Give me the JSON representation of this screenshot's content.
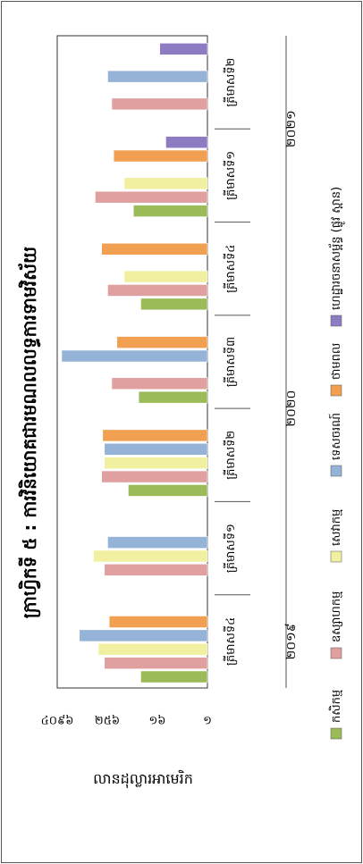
{
  "chart_data": {
    "type": "bar",
    "orientation": "rotated-90",
    "title": "ក្រាហ្វិកទី ៥ : ការវិនិយោគជារមណលលទ្ធការទាមវិស័យ",
    "ylabel": "លានដុល្លារអាមេរិក",
    "y_ticks": [
      "១",
      "១៦",
      "២៥៦",
      "៤០៩៦"
    ],
    "y_scale": "log",
    "ylim": [
      1,
      4096
    ],
    "categories": [
      "ត្រីមាសទី៤",
      "ត្រីមាសទី១",
      "ត្រីមាសទី២",
      "ត្រីមាសទី៣",
      "ត្រីមាសទី៤",
      "ត្រីមាសទី១",
      "ត្រីមាសទី២"
    ],
    "year_groups": [
      {
        "label": "២០១៩",
        "span": [
          0,
          0
        ]
      },
      {
        "label": "២០២០",
        "span": [
          1,
          4
        ]
      },
      {
        "label": "២០២១",
        "span": [
          5,
          6
        ]
      }
    ],
    "series": [
      {
        "name": "កសិកម្ម",
        "color": "#9bbb59",
        "values": [
          40,
          null,
          80,
          45,
          40,
          60,
          null
        ]
      },
      {
        "name": "ឧស្សាហកម្ម",
        "color": "#e0a0a0",
        "values": [
          300,
          300,
          350,
          200,
          250,
          500,
          200
        ]
      },
      {
        "name": "សេវាកម្ម",
        "color": "#f0f0a0",
        "values": [
          420,
          550,
          300,
          null,
          100,
          100,
          null
        ]
      },
      {
        "name": "ទេសចរណ៍",
        "color": "#95b3d7",
        "values": [
          1200,
          250,
          300,
          3200,
          null,
          null,
          250
        ]
      },
      {
        "name": "ថាមពល",
        "color": "#f0a050",
        "values": [
          230,
          null,
          330,
          150,
          350,
          180,
          null
        ]
      },
      {
        "name": "ហេដ្ឋារចនាសម្ព័ន្ធ (ផ្លូវ ស្ពាន)",
        "color": "#8e7cc3",
        "values": [
          null,
          null,
          null,
          null,
          null,
          10,
          14
        ]
      }
    ],
    "legend_position": "bottom"
  }
}
